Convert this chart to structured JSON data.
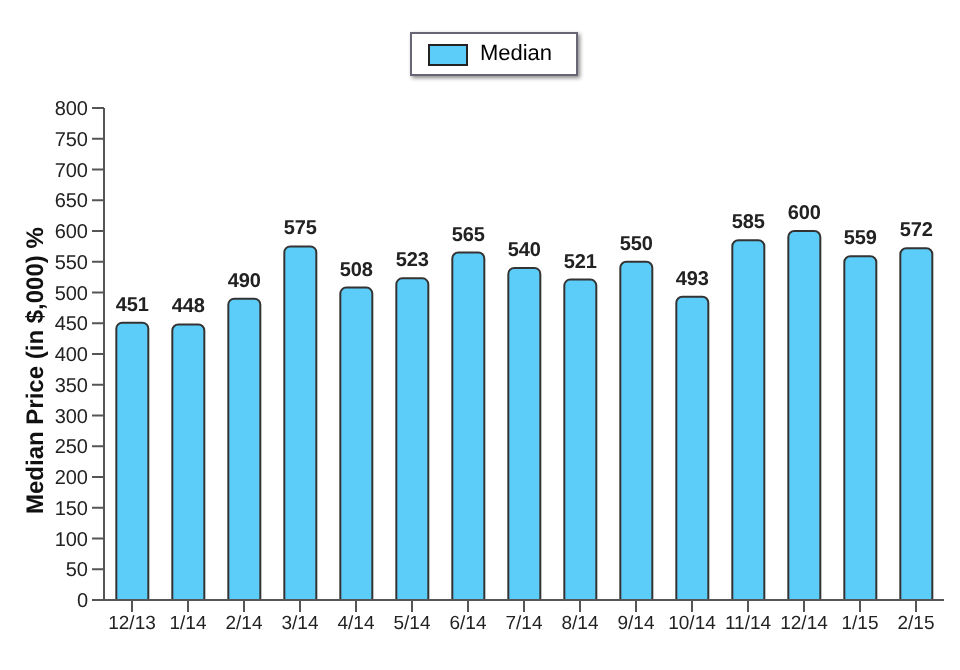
{
  "chart_data": {
    "type": "bar",
    "ylabel": "Median Price (in $,000) %",
    "categories": [
      "12/13",
      "1/14",
      "2/14",
      "3/14",
      "4/14",
      "5/14",
      "6/14",
      "7/14",
      "8/14",
      "9/14",
      "10/14",
      "11/14",
      "12/14",
      "1/15",
      "2/15"
    ],
    "series": [
      {
        "name": "Median",
        "color": "#5bcdf8",
        "values": [
          451,
          448,
          490,
          575,
          508,
          523,
          565,
          540,
          521,
          550,
          493,
          585,
          600,
          559,
          572
        ]
      }
    ],
    "ylim": [
      0,
      800
    ],
    "yticks": [
      0,
      50,
      100,
      150,
      200,
      250,
      300,
      350,
      400,
      450,
      500,
      550,
      600,
      650,
      700,
      750,
      800
    ],
    "data_labels": true,
    "legend": "top",
    "grid": false
  }
}
